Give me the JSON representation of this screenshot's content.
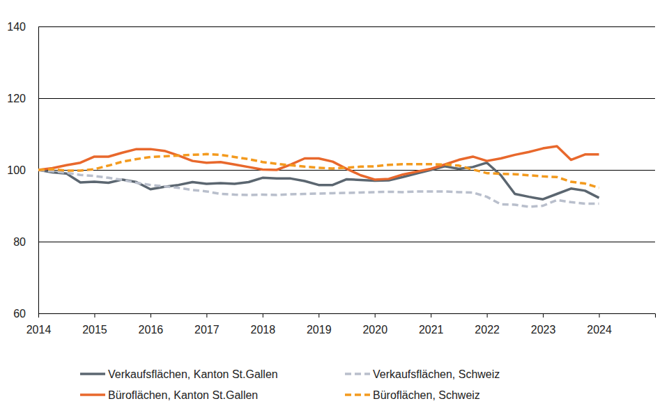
{
  "chart_data": {
    "type": "line",
    "x": [
      2014,
      2014.25,
      2014.5,
      2014.75,
      2015,
      2015.25,
      2015.5,
      2015.75,
      2016,
      2016.25,
      2016.5,
      2016.75,
      2017,
      2017.25,
      2017.5,
      2017.75,
      2018,
      2018.25,
      2018.5,
      2018.75,
      2019,
      2019.25,
      2019.5,
      2019.75,
      2020,
      2020.25,
      2020.5,
      2020.75,
      2021,
      2021.25,
      2021.5,
      2021.75,
      2022,
      2022.25,
      2022.5,
      2022.75,
      2023,
      2023.25,
      2023.5,
      2023.75,
      2024
    ],
    "xlim": [
      2014,
      2025
    ],
    "xticks": [
      2014,
      2015,
      2016,
      2017,
      2018,
      2019,
      2020,
      2021,
      2022,
      2023,
      2024
    ],
    "ylim": [
      60,
      140
    ],
    "yticks": [
      60,
      80,
      100,
      120,
      140
    ],
    "grid": true,
    "legend": "bottom",
    "series": [
      {
        "name": "Verkaufsflächen, Kanton St.Gallen",
        "color": "#5b6670",
        "line_style": "solid",
        "values": [
          100,
          99.3,
          99.0,
          96.5,
          96.7,
          96.4,
          97.3,
          96.6,
          94.6,
          95.3,
          95.8,
          96.6,
          96.1,
          96.3,
          96.1,
          96.6,
          97.8,
          97.6,
          97.6,
          96.9,
          95.8,
          95.8,
          97.4,
          97.2,
          97.0,
          97.1,
          98.0,
          99.0,
          100.0,
          101.0,
          100.3,
          100.8,
          102.0,
          98.5,
          93.3,
          92.5,
          91.8,
          93.3,
          94.8,
          94.2,
          92.2
        ]
      },
      {
        "name": "Verkaufsflächen, Schweiz",
        "color": "#b9bfcc",
        "line_style": "dashed",
        "values": [
          100,
          99.6,
          99.2,
          98.6,
          98.3,
          97.8,
          97.2,
          96.4,
          95.8,
          95.4,
          95.0,
          94.4,
          94.0,
          93.3,
          93.1,
          93.0,
          93.1,
          93.0,
          93.2,
          93.3,
          93.4,
          93.5,
          93.6,
          93.7,
          93.8,
          93.9,
          93.8,
          94.0,
          94.0,
          94.0,
          93.8,
          93.7,
          92.5,
          90.4,
          90.3,
          89.7,
          90.0,
          91.6,
          91.0,
          90.6,
          90.6
        ]
      },
      {
        "name": "Büroflächen, Kanton St.Gallen",
        "color": "#e8682c",
        "line_style": "solid",
        "values": [
          100,
          100.5,
          101.3,
          102.0,
          103.7,
          103.7,
          104.8,
          105.8,
          105.8,
          105.3,
          104.0,
          102.5,
          102.0,
          102.2,
          101.5,
          100.8,
          100.1,
          100.0,
          101.5,
          103.2,
          103.2,
          102.3,
          100.3,
          98.5,
          97.3,
          97.5,
          98.7,
          99.5,
          100.3,
          101.5,
          102.8,
          103.7,
          102.5,
          103.2,
          104.2,
          105.0,
          106.0,
          106.6,
          102.8,
          104.3,
          104.3
        ]
      },
      {
        "name": "Büroflächen, Schweiz",
        "color": "#f39a1e",
        "line_style": "dashed",
        "values": [
          100,
          100.2,
          99.8,
          99.8,
          100.2,
          101.2,
          102.3,
          103.0,
          103.6,
          103.8,
          104.0,
          104.2,
          104.4,
          104.2,
          103.6,
          103.0,
          102.2,
          101.7,
          101.3,
          100.9,
          100.6,
          100.4,
          100.6,
          100.9,
          101.0,
          101.4,
          101.6,
          101.6,
          101.6,
          101.5,
          101.2,
          100.1,
          99.1,
          98.9,
          98.8,
          98.5,
          98.2,
          98.0,
          96.7,
          96.2,
          95.0
        ]
      }
    ]
  }
}
